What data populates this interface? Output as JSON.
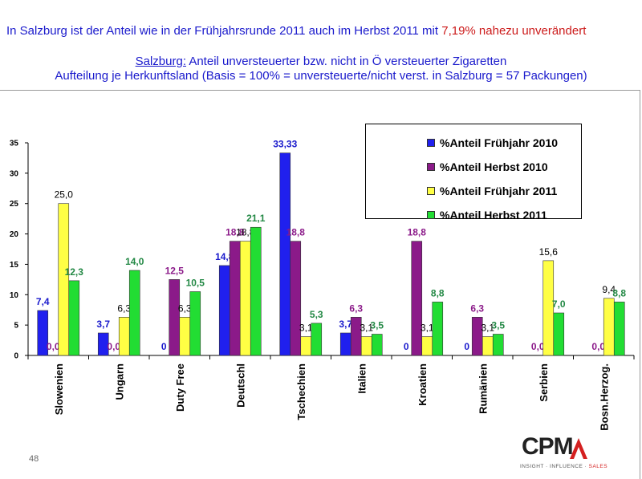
{
  "headline": {
    "text_before": "In Salzburg ist der Anteil wie in der Frühjahrsrunde 2011 auch im Herbst 2011 mit ",
    "highlight": "7,19% nahezu unverändert",
    "highlight_color": "#cc1a1a",
    "color": "#1a1acc"
  },
  "subtitle": {
    "line1_underlined": "Salzburg:",
    "line1_rest": " Anteil unversteuerter bzw. nicht in Ö versteuerter Zigaretten",
    "line2": "Aufteilung je Herkunftsland (Basis = 100% = unversteuerte/nicht verst. in Salzburg = 57 Packungen)"
  },
  "page_number": "48",
  "logo": {
    "name": "CPM",
    "tagline_a": "INSIGHT · INFLUENCE · ",
    "tagline_b": "SALES"
  },
  "chart_data": {
    "type": "bar",
    "categories": [
      "Slowenien",
      "Ungarn",
      "Duty Free",
      "Deutschl",
      "Tschechien",
      "Italien",
      "Kroatien",
      "Rumänien",
      "Serbien",
      "Bosn.Herzog."
    ],
    "ylim": [
      0,
      35
    ],
    "yticks": [
      "0",
      "5",
      "10",
      "15",
      "20",
      "25",
      "30",
      "35"
    ],
    "grid": false,
    "legend_position": "top-right",
    "series": [
      {
        "name": "%Anteil Frühjahr 2010",
        "color": "#2020ee",
        "label_color": "#1a1acc",
        "values": [
          7.4,
          3.7,
          0,
          14.8,
          33.33,
          3.7,
          0,
          0,
          null,
          null
        ],
        "labels": [
          "7,4",
          "3,7",
          "0",
          "14,8",
          "33,33",
          "3,7",
          "0",
          "0",
          "",
          ""
        ]
      },
      {
        "name": "%Anteil Herbst 2010",
        "color": "#8b1a89",
        "label_color": "#8b1a89",
        "values": [
          0,
          0,
          12.5,
          18.8,
          18.8,
          6.3,
          18.8,
          6.3,
          0,
          0
        ],
        "labels": [
          "0,0",
          "0,0",
          "12,5",
          "18,8",
          "18,8",
          "6,3",
          "18,8",
          "6,3",
          "0,0",
          "0,0"
        ]
      },
      {
        "name": "%Anteil Frühjahr 2011",
        "color": "#ffff44",
        "label_color": "#000000",
        "values": [
          25.0,
          6.3,
          6.3,
          18.8,
          3.1,
          3.1,
          3.1,
          3.1,
          15.6,
          9.4
        ],
        "labels": [
          "25,0",
          "6,3",
          "6,3",
          "18,8",
          "3,1",
          "3,1",
          "3,1",
          "3,1",
          "15,6",
          "9,4"
        ]
      },
      {
        "name": "%Anteil Herbst 2011",
        "color": "#22dd33",
        "label_color": "#228844",
        "values": [
          12.3,
          14.0,
          10.5,
          21.1,
          5.3,
          3.5,
          8.8,
          3.5,
          7.0,
          8.8
        ],
        "labels": [
          "12,3",
          "14,0",
          "10,5",
          "21,1",
          "5,3",
          "3,5",
          "8,8",
          "3,5",
          "7,0",
          "8,8"
        ]
      }
    ]
  }
}
